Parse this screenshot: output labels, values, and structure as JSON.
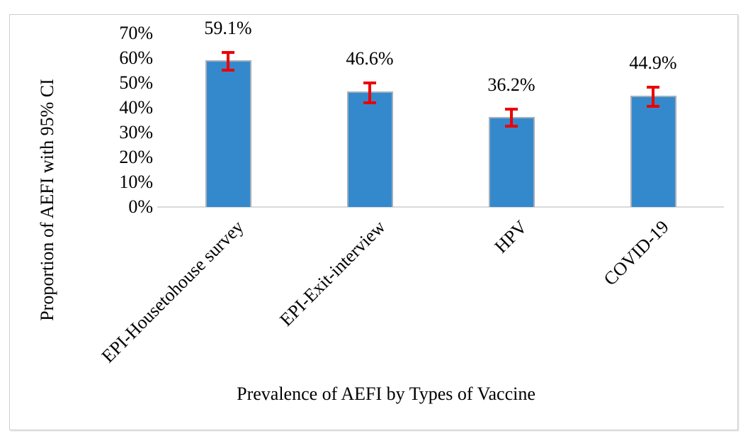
{
  "chart_data": {
    "type": "bar",
    "title": "",
    "categories": [
      "EPI-Housetohouse survey",
      "EPI-Exit-interview",
      "HPV",
      "COVID-19"
    ],
    "values": [
      59.1,
      46.6,
      36.2,
      44.9
    ],
    "value_labels": [
      "59.1%",
      "46.6%",
      "36.2%",
      "44.9%"
    ],
    "ci_low": [
      54.5,
      41.5,
      32.0,
      40.0
    ],
    "ci_high": [
      63.0,
      50.5,
      40.0,
      49.0
    ],
    "xlabel": "Prevalence of AEFI by Types of Vaccine",
    "ylabel": "Proportion of AEFI with 95% CI",
    "ylim": [
      0,
      70
    ],
    "ytick_step": 10,
    "ytick_labels": [
      "0%",
      "10%",
      "20%",
      "30%",
      "40%",
      "50%",
      "60%",
      "70%"
    ],
    "grid": false,
    "legend": "none",
    "colors": {
      "bar_fill": "#3489cd",
      "bar_border": "#a5afba",
      "error_bar": "#ec0000",
      "axis_line": "#d9d9d9",
      "frame_border": "#cfcfcf",
      "text": "#000000",
      "background": "#ffffff"
    }
  }
}
